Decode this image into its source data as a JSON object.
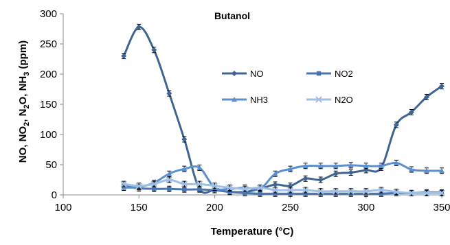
{
  "chart_data": {
    "type": "line",
    "title": "Butanol",
    "xlabel": "Temperature (°C)",
    "ylabel_parts": [
      {
        "t": "NO, NO"
      },
      {
        "t": "2",
        "sub": true
      },
      {
        "t": ", N"
      },
      {
        "t": "2",
        "sub": true
      },
      {
        "t": "O, NH"
      },
      {
        "t": "3",
        "sub": true
      },
      {
        "t": " (ppm)"
      }
    ],
    "xlim": [
      100,
      350
    ],
    "ylim": [
      0,
      300
    ],
    "xticks": [
      "100",
      "150",
      "200",
      "250",
      "300",
      "350"
    ],
    "yticks": [
      "0",
      "50",
      "100",
      "150",
      "200",
      "250",
      "300"
    ],
    "grid": false,
    "legend_position": "center-right",
    "series": [
      {
        "name": "NO",
        "color": "#3e6491",
        "marker": "diamond",
        "x": [
          140,
          150,
          160,
          170,
          180,
          190,
          200,
          210,
          220,
          230,
          240,
          250,
          260,
          270,
          280,
          290,
          300,
          310,
          320,
          330,
          340,
          350
        ],
        "y": [
          230,
          278,
          240,
          168,
          92,
          10,
          8,
          5,
          5,
          10,
          17,
          15,
          27,
          25,
          35,
          37,
          41,
          45,
          116,
          137,
          162,
          180
        ]
      },
      {
        "name": "NO2",
        "color": "#4a76ad",
        "marker": "square",
        "x": [
          140,
          150,
          160,
          170,
          180,
          190,
          200,
          210,
          220,
          230,
          240,
          250,
          260,
          270,
          280,
          290,
          300,
          310,
          320,
          330,
          340,
          350
        ],
        "y": [
          15,
          11,
          10,
          10,
          9,
          9,
          8,
          5,
          3,
          2,
          2,
          2,
          2,
          2,
          2,
          2,
          2,
          2,
          3,
          3,
          4,
          4
        ]
      },
      {
        "name": "NH3",
        "color": "#5b8fd0",
        "marker": "triangle",
        "x": [
          140,
          150,
          160,
          170,
          180,
          190,
          200,
          210,
          220,
          230,
          240,
          250,
          260,
          270,
          280,
          290,
          300,
          310,
          320,
          330,
          340,
          350
        ],
        "y": [
          12,
          13,
          20,
          35,
          43,
          45,
          12,
          10,
          12,
          10,
          35,
          43,
          48,
          48,
          48,
          49,
          48,
          48,
          53,
          42,
          40,
          40
        ]
      },
      {
        "name": "N2O",
        "color": "#9fbfe5",
        "marker": "x",
        "x": [
          140,
          150,
          160,
          170,
          180,
          190,
          200,
          210,
          220,
          230,
          240,
          250,
          260,
          270,
          280,
          290,
          300,
          310,
          320,
          330,
          340,
          350
        ],
        "y": [
          18,
          15,
          18,
          25,
          18,
          18,
          15,
          12,
          10,
          12,
          8,
          8,
          8,
          6,
          6,
          6,
          6,
          8,
          5,
          3,
          3,
          3
        ]
      }
    ]
  }
}
